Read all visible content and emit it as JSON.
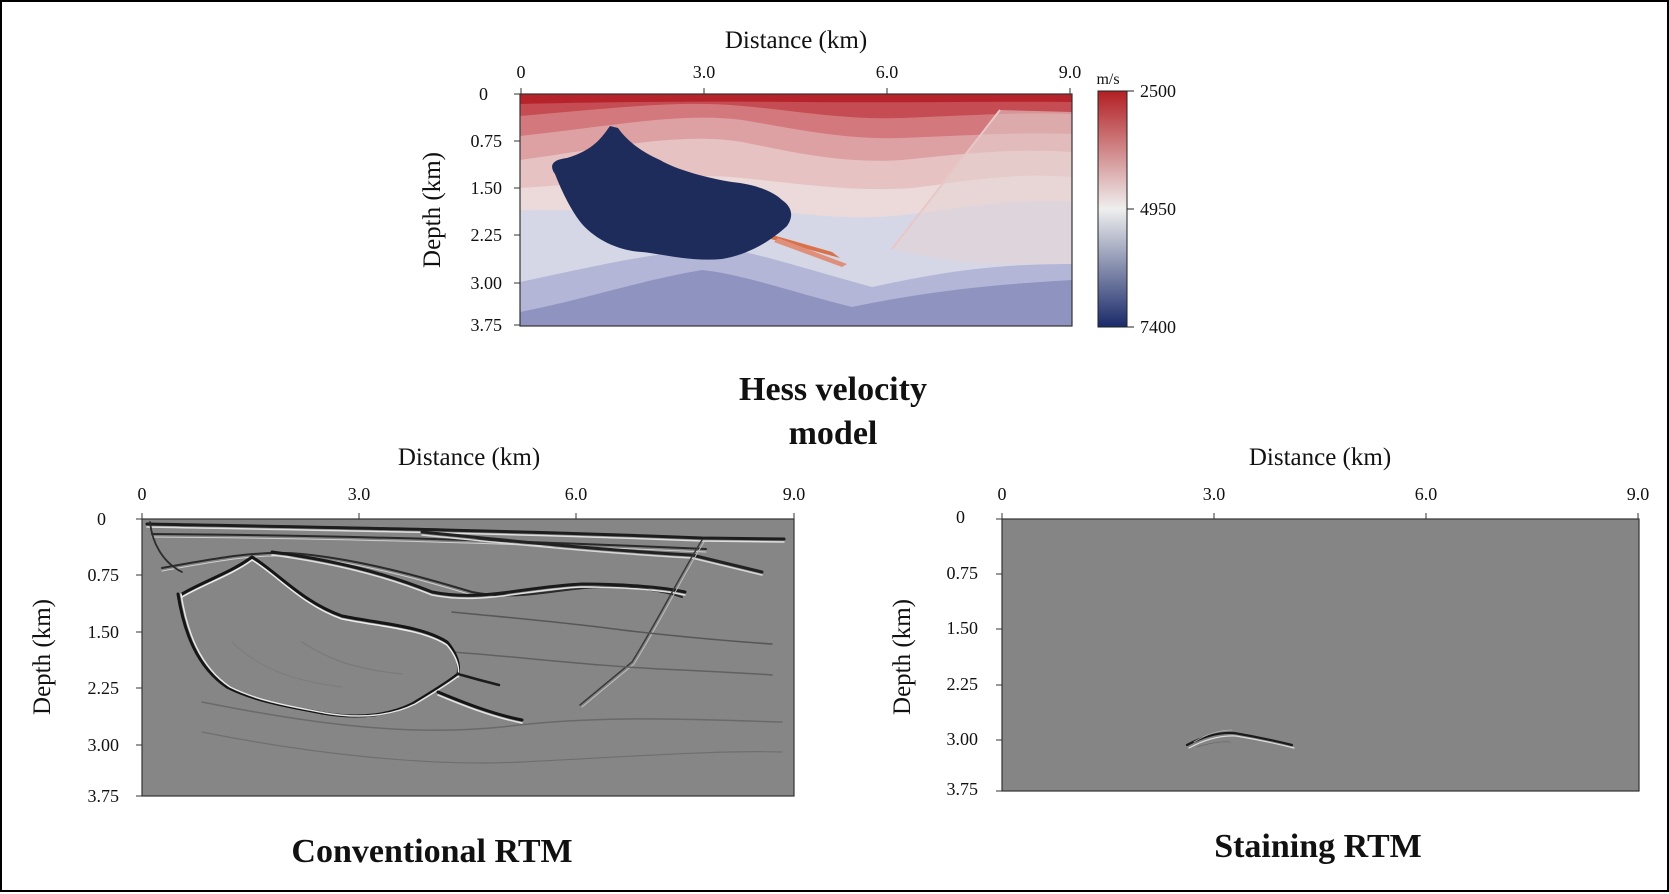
{
  "figure": {
    "top_caption_line1": "Hess velocity",
    "top_caption_line2": "model",
    "left_caption": "Conventional RTM",
    "right_caption": "Staining RTM"
  },
  "chart_data": [
    {
      "type": "heatmap",
      "title": "Hess velocity model",
      "xlabel": "Distance (km)",
      "ylabel": "Depth (km)",
      "xlim": [
        0,
        9.0
      ],
      "ylim": [
        3.75,
        0
      ],
      "x_ticks": [
        "0",
        "3.0",
        "6.0",
        "9.0"
      ],
      "y_ticks": [
        "0",
        "0.75",
        "1.50",
        "2.25",
        "3.00",
        "3.75"
      ],
      "colorbar": {
        "unit": "m/s",
        "ticks": [
          "2500",
          "4950",
          "7400"
        ],
        "range": [
          2500,
          7400
        ],
        "colors": [
          "#b21f23",
          "#eeeeee",
          "#1a2a6a"
        ]
      },
      "colors": {
        "salt": "#1e2c5c",
        "top": "#b7232a",
        "deep": "#8f93bf"
      }
    },
    {
      "type": "heatmap",
      "title": "Conventional RTM",
      "xlabel": "Distance (km)",
      "ylabel": "Depth (km)",
      "xlim": [
        0,
        9.0
      ],
      "ylim": [
        3.75,
        0
      ],
      "x_ticks": [
        "0",
        "3.0",
        "6.0",
        "9.0"
      ],
      "y_ticks": [
        "0",
        "0.75",
        "1.50",
        "2.25",
        "3.00",
        "3.75"
      ],
      "colors": {
        "background": "#868686"
      }
    },
    {
      "type": "heatmap",
      "title": "Staining RTM",
      "xlabel": "Distance (km)",
      "ylabel": "Depth (km)",
      "xlim": [
        0,
        9.0
      ],
      "ylim": [
        3.75,
        0
      ],
      "x_ticks": [
        "0",
        "3.0",
        "6.0",
        "9.0"
      ],
      "y_ticks": [
        "0",
        "0.75",
        "1.50",
        "2.25",
        "3.00",
        "3.75"
      ],
      "colors": {
        "background": "#868686"
      }
    }
  ]
}
